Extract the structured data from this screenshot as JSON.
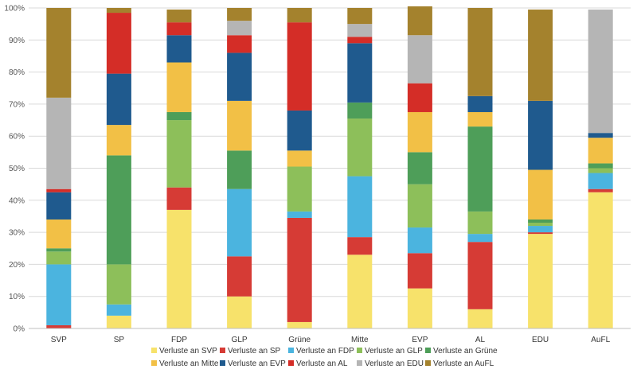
{
  "chart_data": {
    "type": "bar",
    "stacked": true,
    "percent": true,
    "title": "",
    "xlabel": "",
    "ylabel": "",
    "ylim": [
      0,
      100
    ],
    "yticks": [
      "0%",
      "10%",
      "20%",
      "30%",
      "40%",
      "50%",
      "60%",
      "70%",
      "80%",
      "90%",
      "100%"
    ],
    "grid": true,
    "legend_position": "bottom",
    "categories": [
      "SVP",
      "SP",
      "FDP",
      "GLP",
      "Grüne",
      "Mitte",
      "EVP",
      "AL",
      "EDU",
      "AuFL"
    ],
    "series": [
      {
        "name": "Verluste an  SVP",
        "color": "#F7E26B",
        "values": [
          0,
          4,
          37,
          10,
          2,
          23,
          12.5,
          6,
          29.5,
          42.5
        ]
      },
      {
        "name": "Verluste an  SP",
        "color": "#D63B35",
        "values": [
          1,
          0,
          7,
          12.5,
          32.5,
          5.5,
          11,
          21,
          0.5,
          1
        ]
      },
      {
        "name": "Verluste an  FDP",
        "color": "#4BB4DF",
        "values": [
          19,
          3.5,
          0,
          21,
          2,
          19,
          8,
          2.5,
          2,
          5
        ]
      },
      {
        "name": "Verluste an  GLP",
        "color": "#8DBF5A",
        "values": [
          4,
          12.5,
          21,
          0,
          14,
          18,
          13.5,
          7,
          1,
          1.5
        ]
      },
      {
        "name": "Verluste an  Grüne",
        "color": "#4E9E59",
        "values": [
          1,
          34,
          2.5,
          12,
          0,
          5,
          10,
          26.5,
          1,
          1.5
        ]
      },
      {
        "name": "Verluste an  Mitte",
        "color": "#F2C046",
        "values": [
          9,
          9.5,
          15.5,
          15.5,
          5,
          0,
          12.5,
          4.5,
          15.5,
          8
        ]
      },
      {
        "name": "Verluste an  EVP",
        "color": "#1F5A8E",
        "values": [
          8.5,
          16,
          8.5,
          15,
          12.5,
          18.5,
          0,
          5,
          21.5,
          1.5
        ]
      },
      {
        "name": "Verluste an  AL",
        "color": "#D42D27",
        "values": [
          1,
          19,
          4,
          5.5,
          27.5,
          2,
          9,
          0,
          0,
          0
        ]
      },
      {
        "name": "Verluste an  EDU",
        "color": "#B5B5B5",
        "values": [
          28.5,
          0,
          0,
          4.5,
          0,
          4,
          15,
          0,
          0,
          38.5
        ]
      },
      {
        "name": "Verluste an  AuFL",
        "color": "#A4822D",
        "values": [
          28,
          1.5,
          4,
          4,
          4.5,
          5,
          9,
          27.5,
          28.5,
          0
        ]
      }
    ]
  }
}
